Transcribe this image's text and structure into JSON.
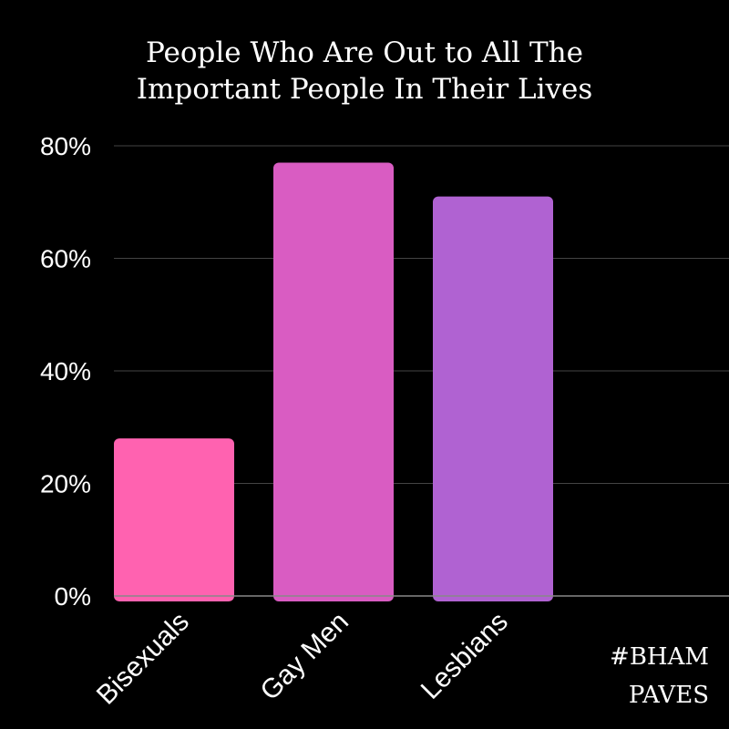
{
  "chart_data": {
    "type": "bar",
    "title_lines": [
      "People Who Are Out to All The",
      "Important People In Their Lives"
    ],
    "categories": [
      "Bisexuals",
      "Gay Men",
      "Lesbians"
    ],
    "values": [
      28,
      77,
      71
    ],
    "value_unit": "%",
    "ylim": [
      0,
      80
    ],
    "yticks": [
      0,
      20,
      40,
      60,
      80
    ],
    "ytick_labels": [
      "0%",
      "20%",
      "40%",
      "60%",
      "80%"
    ],
    "xlabel": "",
    "ylabel": "",
    "grid": true,
    "bar_colors": [
      "#FF62B0",
      "#D95CC2",
      "#B062D2"
    ]
  },
  "watermark": {
    "lines": [
      "#BHAM",
      "PAVES"
    ]
  },
  "colors": {
    "background": "#000000",
    "text": "#ffffff",
    "gridline": "#444444",
    "axis": "#888888"
  }
}
